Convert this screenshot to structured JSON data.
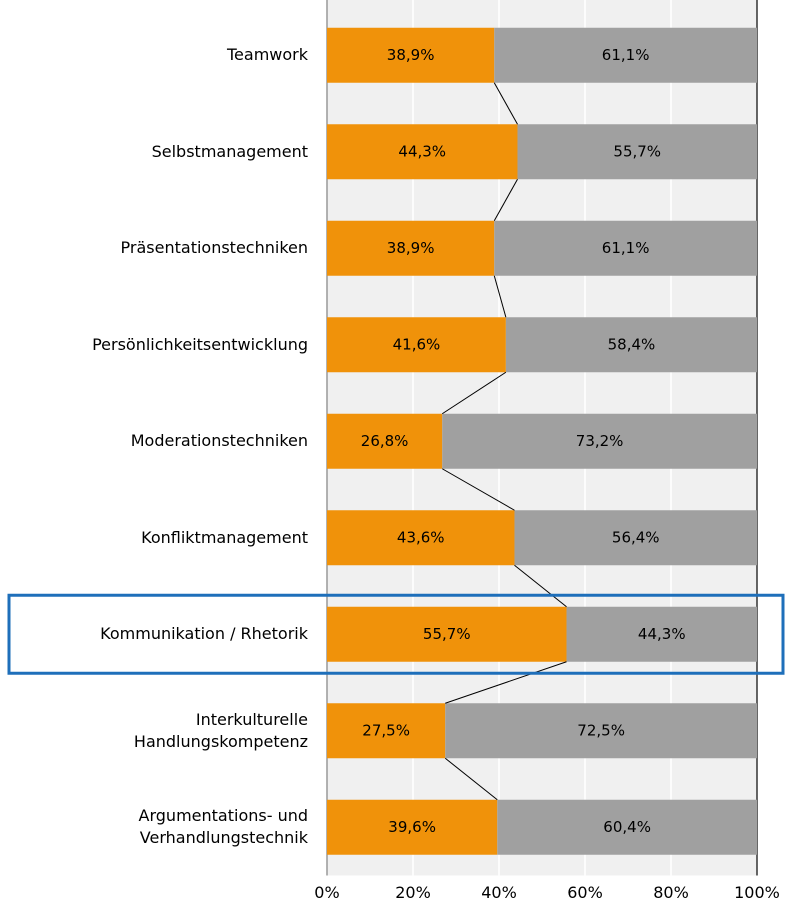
{
  "chart_data": {
    "type": "stacked_bar_horizontal",
    "categories": [
      "Teamwork",
      "Selbstmanagement",
      "Präsentationstechniken",
      "Persönlichkeitsentwicklung",
      "Moderationstechniken",
      "Konfliktmanagement",
      "Kommunikation / Rhetorik",
      "Interkulturelle\nHandlungskompetenz",
      "Argumentations- und\nVerhandlungstechnik"
    ],
    "series": [
      {
        "color": "#f0920a",
        "values": [
          38.9,
          44.3,
          38.9,
          41.6,
          26.8,
          43.6,
          55.7,
          27.5,
          39.6
        ],
        "value_labels": [
          "38,9%",
          "44,3%",
          "38,9%",
          "41,6%",
          "26,8%",
          "43,6%",
          "55,7%",
          "27,5%",
          "39,6%"
        ]
      },
      {
        "color": "#a0a0a0",
        "values": [
          61.1,
          55.7,
          61.1,
          58.4,
          73.2,
          56.4,
          44.3,
          72.5,
          60.4
        ],
        "value_labels": [
          "61,1%",
          "55,7%",
          "61,1%",
          "58,4%",
          "73,2%",
          "56,4%",
          "44,3%",
          "72,5%",
          "60,4%"
        ]
      }
    ],
    "xlim": [
      0,
      100
    ],
    "xticks": [
      {
        "value": 0,
        "label": "0%"
      },
      {
        "value": 20,
        "label": "20%"
      },
      {
        "value": 40,
        "label": "40%"
      },
      {
        "value": 60,
        "label": "60%"
      },
      {
        "value": 80,
        "label": "80%"
      },
      {
        "value": 100,
        "label": "100%"
      }
    ],
    "grid": true,
    "series_lines": true,
    "highlight_category": 6,
    "highlight_color": "#1e6fba"
  }
}
